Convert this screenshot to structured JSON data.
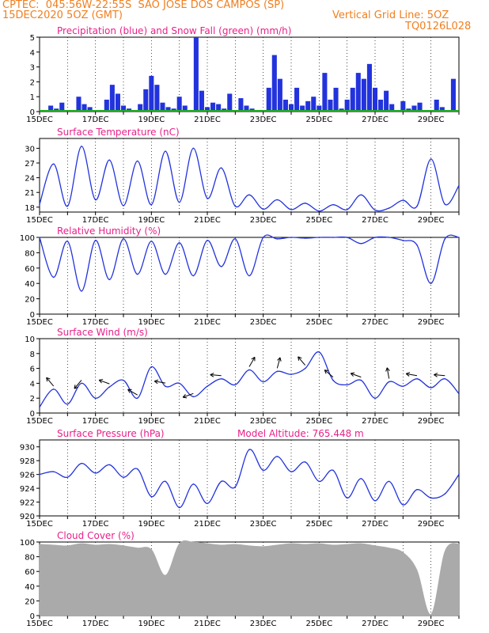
{
  "header": {
    "line1": "CPTEC:  045:56W-22:55S  SAO JOSE DOS CAMPOS (SP)",
    "line2_left": "15DEC2020 5OZ (GMT)",
    "line2_right": "Vertical Grid Line: 5OZ",
    "code": "TQ0126L028"
  },
  "colors": {
    "header": "#f07f1f",
    "title": "#e8208a",
    "series": "#2233dd",
    "snow": "#22aa22",
    "cloud": "#aaaaaa",
    "arrow": "#000000"
  },
  "x_tick_labels": [
    "15DEC",
    "17DEC",
    "19DEC",
    "21DEC",
    "23DEC",
    "25DEC",
    "27DEC",
    "29DEC"
  ],
  "chart_data": [
    {
      "type": "bar",
      "title": "Precipitation (blue) and Snow Fall (green) (mm/h)",
      "yticks": [
        "0",
        "1",
        "2",
        "3",
        "4",
        "5"
      ],
      "ylim": [
        0,
        5
      ],
      "x": [
        0.2,
        0.4,
        0.6,
        0.8,
        1.0,
        1.2,
        1.4,
        1.6,
        1.8,
        2.0,
        2.2,
        2.4,
        2.6,
        2.8,
        3.0,
        3.2,
        3.4,
        3.6,
        3.8,
        4.0,
        4.2,
        4.4,
        4.6,
        4.8,
        5.0,
        5.2,
        5.4,
        5.6,
        5.8,
        6.0,
        6.2,
        6.4,
        6.6,
        6.8,
        7.0,
        7.2,
        7.4,
        7.6,
        7.8,
        8.0,
        8.2,
        8.4,
        8.6,
        8.8,
        9.0,
        9.2,
        9.4,
        9.6,
        9.8,
        10.0,
        10.2,
        10.4,
        10.6,
        10.8,
        11.0,
        11.2,
        11.4,
        11.6,
        11.8,
        12.0,
        12.2,
        12.4,
        12.6,
        12.8,
        13.0,
        13.2,
        13.4,
        13.6,
        13.8,
        14.0,
        14.2,
        14.4,
        14.6,
        14.8
      ],
      "precip": [
        0.1,
        0.4,
        0.2,
        0.6,
        0,
        0,
        1.0,
        0.5,
        0.3,
        0,
        0,
        0.8,
        1.8,
        1.2,
        0.4,
        0.2,
        0,
        0.5,
        1.5,
        2.4,
        1.8,
        0.6,
        0.3,
        0.2,
        1.0,
        0.4,
        0,
        5.0,
        1.4,
        0.3,
        0.6,
        0.5,
        0.2,
        1.2,
        0,
        0.9,
        0.4,
        0.2,
        0,
        0.1,
        1.6,
        3.8,
        2.2,
        0.8,
        0.5,
        1.6,
        0.4,
        0.7,
        1.0,
        0.4,
        2.6,
        0.8,
        1.6,
        0.2,
        0.8,
        1.6,
        2.6,
        2.2,
        3.2,
        1.6,
        0.8,
        1.4,
        0.5,
        0,
        0.7,
        0.2,
        0.4,
        0.6,
        0,
        0,
        0.8,
        0.3,
        0,
        2.2
      ],
      "snow": "0"
    },
    {
      "type": "line",
      "title": "Surface Temperature (nC)",
      "yticks": [
        "18",
        "21",
        "24",
        "27",
        "30"
      ],
      "ylim": [
        17,
        32
      ],
      "x": [
        0,
        0.5,
        1.0,
        1.5,
        2.0,
        2.5,
        3.0,
        3.5,
        4.0,
        4.5,
        5.0,
        5.5,
        6.0,
        6.5,
        7.0,
        7.5,
        8.0,
        8.5,
        9.0,
        9.5,
        10.0,
        10.5,
        11.0,
        11.5,
        12.0,
        12.5,
        13.0,
        13.5,
        14.0,
        14.5,
        15.0
      ],
      "y": [
        18.6,
        26.8,
        18.2,
        30.4,
        19.5,
        27.6,
        18.3,
        27.4,
        18.5,
        29.4,
        19.0,
        30.0,
        19.8,
        26.0,
        18.2,
        20.5,
        17.6,
        19.5,
        17.5,
        18.8,
        17.2,
        18.5,
        17.5,
        20.5,
        17.4,
        17.8,
        19.4,
        18.2,
        27.8,
        18.6,
        22.4
      ]
    },
    {
      "type": "line",
      "title": "Relative Humidity (%)",
      "yticks": [
        "0",
        "20",
        "40",
        "60",
        "80",
        "100"
      ],
      "ylim": [
        0,
        100
      ],
      "x": [
        0,
        0.5,
        1.0,
        1.5,
        2.0,
        2.5,
        3.0,
        3.5,
        4.0,
        4.5,
        5.0,
        5.5,
        6.0,
        6.5,
        7.0,
        7.5,
        8.0,
        8.5,
        9.0,
        9.5,
        10.0,
        10.5,
        11.0,
        11.5,
        12.0,
        12.5,
        13.0,
        13.5,
        14.0,
        14.5,
        15.0
      ],
      "y": [
        100,
        48,
        95,
        30,
        96,
        45,
        98,
        52,
        95,
        52,
        93,
        50,
        96,
        62,
        98,
        50,
        100,
        98,
        100,
        99,
        100,
        100,
        100,
        92,
        100,
        100,
        96,
        90,
        40,
        98,
        100
      ]
    },
    {
      "type": "line",
      "title": "Surface Wind (m/s)",
      "yticks": [
        "0",
        "2",
        "4",
        "6",
        "8",
        "10"
      ],
      "ylim": [
        0,
        10
      ],
      "x": [
        0,
        0.5,
        1.0,
        1.5,
        2.0,
        2.5,
        3.0,
        3.5,
        4.0,
        4.5,
        5.0,
        5.5,
        6.0,
        6.5,
        7.0,
        7.5,
        8.0,
        8.5,
        9.0,
        9.5,
        10.0,
        10.5,
        11.0,
        11.5,
        12.0,
        12.5,
        13.0,
        13.5,
        14.0,
        14.5,
        15.0
      ],
      "y": [
        0.8,
        3.2,
        1.2,
        4.0,
        2.0,
        3.5,
        4.4,
        2.0,
        6.2,
        3.6,
        4.0,
        2.2,
        3.6,
        4.6,
        3.8,
        5.8,
        4.2,
        5.6,
        5.2,
        6.0,
        8.2,
        4.4,
        3.8,
        4.4,
        2.0,
        4.2,
        3.6,
        4.6,
        3.4,
        4.6,
        2.6
      ]
    },
    {
      "type": "line",
      "title": "Surface Pressure (hPa)",
      "annotation": "Model Altitude: 765.448 m",
      "yticks": [
        "920",
        "922",
        "924",
        "926",
        "928",
        "930"
      ],
      "ylim": [
        920,
        931
      ],
      "x": [
        0,
        0.5,
        1.0,
        1.5,
        2.0,
        2.5,
        3.0,
        3.5,
        4.0,
        4.5,
        5.0,
        5.5,
        6.0,
        6.5,
        7.0,
        7.5,
        8.0,
        8.5,
        9.0,
        9.5,
        10.0,
        10.5,
        11.0,
        11.5,
        12.0,
        12.5,
        13.0,
        13.5,
        14.0,
        14.5,
        15.0
      ],
      "y": [
        926,
        926.4,
        925.6,
        927.6,
        926.2,
        927.4,
        925.6,
        926.8,
        922.8,
        925,
        921.2,
        924.6,
        921.8,
        925,
        924.2,
        929.6,
        926.6,
        928.6,
        926.4,
        927.8,
        925,
        926.6,
        922.6,
        925.4,
        922.2,
        925,
        921.6,
        923.8,
        922.6,
        923.2,
        926
      ]
    },
    {
      "type": "area",
      "title": "Cloud Cover (%)",
      "yticks": [
        "0",
        "20",
        "40",
        "60",
        "80",
        "100"
      ],
      "ylim": [
        0,
        100
      ],
      "x": [
        0,
        0.5,
        1.0,
        1.5,
        2.0,
        2.5,
        3.0,
        3.5,
        4.0,
        4.5,
        5.0,
        5.5,
        6.0,
        6.5,
        7.0,
        7.5,
        8.0,
        8.5,
        9.0,
        9.5,
        10.0,
        10.5,
        11.0,
        11.5,
        12.0,
        12.5,
        13.0,
        13.5,
        14.0,
        14.5,
        15.0
      ],
      "y": [
        97,
        96,
        95,
        98,
        96,
        97,
        95,
        92,
        90,
        55,
        98,
        100,
        98,
        96,
        97,
        95,
        94,
        96,
        98,
        97,
        98,
        96,
        97,
        98,
        95,
        92,
        86,
        62,
        2,
        88,
        98
      ]
    }
  ]
}
